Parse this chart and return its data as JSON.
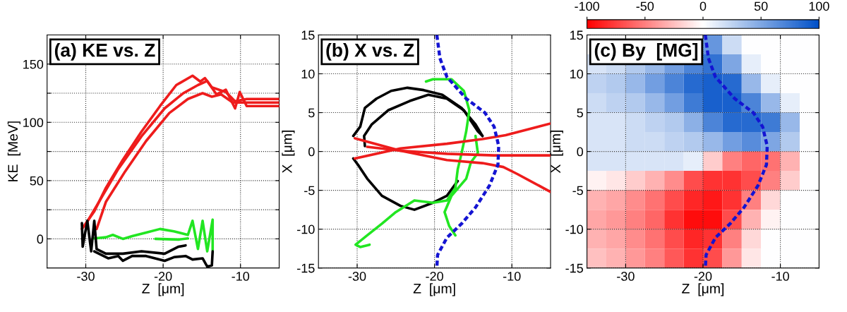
{
  "chart_data": [
    {
      "type": "line",
      "title": "(a) KE vs. Z",
      "xlabel": "Z  [μm]",
      "ylabel": "KE  [MeV]",
      "xlim": [
        -35,
        -5
      ],
      "xticks": [
        -30,
        -20,
        -10
      ],
      "ylim": [
        -25,
        175
      ],
      "yticks": [
        0,
        {
          "value": 25,
          "label": null
        },
        50,
        {
          "value": 75,
          "label": null
        },
        100,
        {
          "value": 125,
          "label": null
        },
        150
      ],
      "grid": true,
      "line_style": "solid",
      "series": [
        {
          "color": "#ee1c1c",
          "x": [
            -30.5,
            -28.9,
            -27.4,
            -25.2,
            -22.8,
            -20.4,
            -18.3,
            -16.2,
            -15.2,
            -14.6,
            -13.7,
            -11.9,
            -10.7,
            -9.2,
            -5
          ],
          "values": [
            8.5,
            23.6,
            43.8,
            68,
            92,
            114,
            132,
            140,
            135,
            138,
            130,
            126,
            118,
            120,
            120
          ]
        },
        {
          "color": "#ee1c1c",
          "x": [
            -30.1,
            -28.3,
            -25.8,
            -22.8,
            -19.8,
            -17.4,
            -15.5,
            -14.3,
            -13.1,
            -11.9,
            -10.7,
            -10.1,
            -9.2,
            -5
          ],
          "values": [
            11.5,
            31.7,
            60,
            88,
            112,
            125,
            132,
            135.5,
            124,
            128,
            112,
            126,
            114,
            114
          ]
        },
        {
          "color": "#ee1c1c",
          "x": [
            -28.6,
            -27.4,
            -24.9,
            -22.2,
            -19.2,
            -16.8,
            -14.9,
            -13.7,
            -12.5,
            -11,
            -5
          ],
          "values": [
            8.5,
            31.7,
            58,
            84,
            108,
            120,
            125,
            122,
            124,
            117,
            117
          ]
        },
        {
          "color": "#22e622",
          "x": [
            -28.9,
            -27.4,
            -26.5,
            -25.2,
            -24,
            -22.2,
            -20.4,
            -18.6,
            -16.8,
            -16.2,
            -15.5,
            -14.9,
            -14.3,
            -13.6,
            -13.6
          ],
          "values": [
            0.4,
            1.4,
            3.4,
            0,
            2.4,
            5.4,
            8.5,
            6.5,
            3.4,
            15.5,
            -8.7,
            15.5,
            -10.7,
            16.5,
            -9.7
          ]
        },
        {
          "color": "#22e622",
          "x": [
            -21,
            -18,
            -16.8
          ],
          "values": [
            0,
            -0.6,
            0.4
          ]
        },
        {
          "color": "#000000",
          "x": [
            -30.5,
            -30.4,
            -29.8,
            -29.3,
            -28.9,
            -28.6,
            -27.4,
            -25.2,
            -22.8,
            -19.8,
            -18,
            -17.1
          ],
          "values": [
            13.5,
            -6.7,
            15.5,
            -10.7,
            15.5,
            -8.7,
            -12.7,
            -12.7,
            -10.7,
            -12.7,
            -6.7,
            -5.6
          ]
        },
        {
          "color": "#000000",
          "x": [
            -28.9,
            -27.1,
            -25.8,
            -25.2,
            -24,
            -22.2,
            -19.8,
            -18.6,
            -17.1,
            -16.2,
            -14.9,
            -14.3,
            -13.7,
            -13.6
          ],
          "values": [
            -10.7,
            -16.7,
            -14.7,
            -18.8,
            -14.7,
            -14.7,
            -18.8,
            -15.7,
            -14.7,
            -17.7,
            -16.7,
            -23.8,
            -22.8,
            -10.7
          ]
        }
      ]
    },
    {
      "type": "line",
      "title": "(b) X vs. Z",
      "xlabel": "Z  [μm]",
      "ylabel": "X  [μm]",
      "xlim": [
        -35,
        -5
      ],
      "xticks": [
        -30,
        -20,
        -10
      ],
      "ylim": [
        -15,
        15
      ],
      "yticks": [
        -15,
        -10,
        -5,
        0,
        5,
        10,
        15
      ],
      "grid": true,
      "series": [
        {
          "color": "#1414d2",
          "line_style": "dashed",
          "x": [
            -19.7,
            -19.3,
            -18.4,
            -15.9,
            -13.5,
            -12.3,
            -11.7,
            -11.8,
            -12.9,
            -14.7,
            -16.5,
            -18.4,
            -19.6,
            -19.7
          ],
          "values": [
            15,
            12,
            9.6,
            6.8,
            5,
            3.2,
            0.7,
            -1.7,
            -4.4,
            -7.2,
            -9.3,
            -11.1,
            -13.3,
            -15
          ]
        },
        {
          "color": "#000000",
          "x": [
            -30.5,
            -29.9,
            -28.7,
            -26.8,
            -24.4,
            -22.6,
            -20.2,
            -18.4,
            -17
          ],
          "values": [
            -0.9,
            -1.7,
            -3.5,
            -5.7,
            -7,
            -7.5,
            -6.6,
            -5.7,
            -3.8
          ]
        },
        {
          "color": "#000000",
          "x": [
            -30.5,
            -29.6,
            -29,
            -27.5,
            -25.6,
            -23.5,
            -21.4,
            -19,
            -16.5,
            -14.7,
            -13.8
          ],
          "values": [
            2,
            3.2,
            5.6,
            6.8,
            7.8,
            8.2,
            7.9,
            7.3,
            5.6,
            3.5,
            2
          ]
        },
        {
          "color": "#000000",
          "x": [
            -29,
            -29.1,
            -28.1,
            -26,
            -23.2,
            -20.8,
            -18.4,
            -16.2,
            -14.4,
            -13.8
          ],
          "values": [
            0.7,
            2,
            3.5,
            5.3,
            6.5,
            7.3,
            6.8,
            5.3,
            2.6,
            2
          ]
        },
        {
          "color": "#22e622",
          "x": [
            -21.1,
            -20.2,
            -17.8,
            -16.2,
            -15.5,
            -15.9,
            -16.5,
            -17,
            -17.3,
            -18.4,
            -20.2,
            -22.6,
            -25,
            -26.8,
            -28.7,
            -30.2,
            -29.6,
            -28.4
          ],
          "values": [
            9,
            9.3,
            9.3,
            7.8,
            5.3,
            2.6,
            -0.2,
            -2.3,
            -4.7,
            -6.3,
            -6.6,
            -6.3,
            -7.8,
            -9.3,
            -10.8,
            -12,
            -12.3,
            -12
          ]
        },
        {
          "color": "#22e622",
          "x": [
            -14.7,
            -14.4,
            -15.3,
            -15.9,
            -17.8,
            -18.7,
            -18.1,
            -17.3
          ],
          "values": [
            2,
            -0.2,
            -1.4,
            -3.5,
            -5.7,
            -7.8,
            -9.6,
            -10.8
          ]
        },
        {
          "color": "#ee1c1c",
          "x": [
            -30.3,
            -24.4,
            -18.4,
            -13.8,
            -11.1,
            -9.3,
            -5
          ],
          "values": [
            1.7,
            0.1,
            -1.1,
            -1.5,
            -2,
            -2.9,
            -5.2
          ]
        },
        {
          "color": "#ee1c1c",
          "x": [
            -30.3,
            -24.4,
            -18.4,
            -13.8,
            -10.8,
            -5
          ],
          "values": [
            -0.9,
            0.4,
            1,
            1.6,
            2.1,
            3.6
          ]
        },
        {
          "color": "#ee1c1c",
          "x": [
            -28.7,
            -24.4,
            -18.4,
            -12.3,
            -5
          ],
          "values": [
            0.6,
            0.1,
            -0.3,
            -0.5,
            -0.5
          ]
        }
      ]
    },
    {
      "type": "heatmap",
      "title": "(c) By  [MG]",
      "xlabel": "Z  [μm]",
      "ylabel": "X  [μm]",
      "xlim": [
        -35,
        -5
      ],
      "xticks": [
        -30,
        -20,
        -10
      ],
      "ylim": [
        -15,
        15
      ],
      "yticks": [
        -15,
        -10,
        -5,
        0,
        5,
        10,
        15
      ],
      "grid": true,
      "clim": [
        -100,
        100
      ],
      "cticks": [
        -100,
        -50,
        0,
        50,
        100
      ],
      "cells": [
        [
          null,
          null,
          null,
          null,
          null,
          null,
          60,
          20,
          0,
          0,
          0,
          0
        ],
        [
          15,
          20,
          30,
          40,
          55,
          70,
          80,
          50,
          10,
          0,
          0,
          0
        ],
        [
          25,
          30,
          40,
          55,
          70,
          85,
          90,
          85,
          40,
          10,
          0,
          0
        ],
        [
          20,
          25,
          30,
          40,
          55,
          75,
          90,
          90,
          70,
          40,
          10,
          0
        ],
        [
          15,
          15,
          20,
          25,
          30,
          45,
          70,
          85,
          85,
          75,
          40,
          0
        ],
        [
          15,
          15,
          20,
          20,
          25,
          30,
          40,
          55,
          65,
          50,
          30,
          0
        ],
        [
          15,
          15,
          15,
          15,
          15,
          10,
          -20,
          -50,
          -60,
          -55,
          -30,
          0
        ],
        [
          -5,
          -10,
          -20,
          -30,
          -45,
          -70,
          -80,
          -80,
          -70,
          -50,
          -20,
          0
        ],
        [
          -30,
          -35,
          -45,
          -55,
          -70,
          -85,
          -90,
          -80,
          -50,
          -15,
          0,
          0
        ],
        [
          -35,
          -40,
          -50,
          -60,
          -80,
          -95,
          -95,
          -70,
          -30,
          -5,
          0,
          0
        ],
        [
          -30,
          -35,
          -45,
          -55,
          -70,
          -85,
          -80,
          -50,
          -15,
          0,
          0,
          0
        ],
        [
          -25,
          -30,
          -40,
          -50,
          -65,
          -80,
          -70,
          -40,
          -10,
          0,
          0,
          0
        ]
      ],
      "series": [
        {
          "type": "line",
          "color": "#1414d2",
          "line_style": "dashed",
          "x": [
            -19.7,
            -19.3,
            -18.4,
            -15.9,
            -13.5,
            -12.3,
            -11.7,
            -11.8,
            -12.9,
            -14.7,
            -16.5,
            -18.4,
            -19.6,
            -19.7
          ],
          "values": [
            15,
            12,
            9.6,
            6.8,
            5,
            3.2,
            0.7,
            -1.7,
            -4.4,
            -7.2,
            -9.3,
            -11.1,
            -13.3,
            -15
          ]
        }
      ]
    }
  ]
}
